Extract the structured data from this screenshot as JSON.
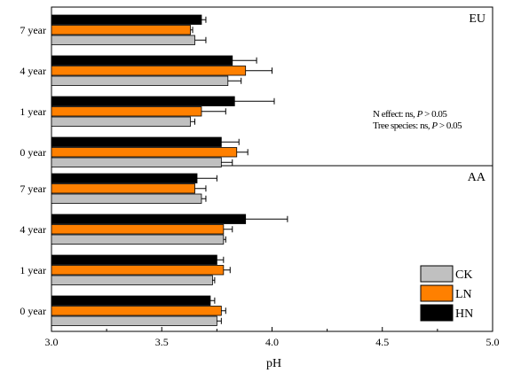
{
  "chart_data": {
    "type": "bar",
    "orientation": "horizontal",
    "xlabel": "pH",
    "xlim": [
      3.0,
      5.0
    ],
    "xticks": [
      "3.0",
      "3.5",
      "4.0",
      "4.5",
      "5.0"
    ],
    "categories": [
      "7 year",
      "4 year",
      "1 year",
      "0 year"
    ],
    "legend": {
      "placement": "bottom-right",
      "entries": [
        {
          "name": "CK",
          "color": "#c0c0c0"
        },
        {
          "name": "LN",
          "color": "#ff8000"
        },
        {
          "name": "HN",
          "color": "#000000"
        }
      ]
    },
    "panels": [
      {
        "label": "EU",
        "annotations": [
          {
            "prefix": "N effect: ns, ",
            "italic": "P",
            "suffix": " > 0.05"
          },
          {
            "prefix": "Tree species: ns, ",
            "italic": "P",
            "suffix": " > 0.05"
          }
        ],
        "series": [
          {
            "name": "HN",
            "values": [
              3.68,
              3.82,
              3.83,
              3.77
            ],
            "errors": [
              0.02,
              0.11,
              0.18,
              0.08
            ]
          },
          {
            "name": "LN",
            "values": [
              3.63,
              3.88,
              3.68,
              3.84
            ],
            "errors": [
              0.01,
              0.12,
              0.11,
              0.05
            ]
          },
          {
            "name": "CK",
            "values": [
              3.65,
              3.8,
              3.63,
              3.77
            ],
            "errors": [
              0.05,
              0.06,
              0.02,
              0.05
            ]
          }
        ]
      },
      {
        "label": "AA",
        "annotations": [],
        "series": [
          {
            "name": "HN",
            "values": [
              3.66,
              3.88,
              3.75,
              3.72
            ],
            "errors": [
              0.09,
              0.19,
              0.03,
              0.02
            ]
          },
          {
            "name": "LN",
            "values": [
              3.65,
              3.78,
              3.78,
              3.77
            ],
            "errors": [
              0.05,
              0.04,
              0.03,
              0.02
            ]
          },
          {
            "name": "CK",
            "values": [
              3.68,
              3.78,
              3.73,
              3.75
            ],
            "errors": [
              0.02,
              0.01,
              0.01,
              0.02
            ]
          }
        ]
      }
    ],
    "colors": {
      "CK": "#c0c0c0",
      "LN": "#ff8000",
      "HN": "#000000"
    }
  }
}
